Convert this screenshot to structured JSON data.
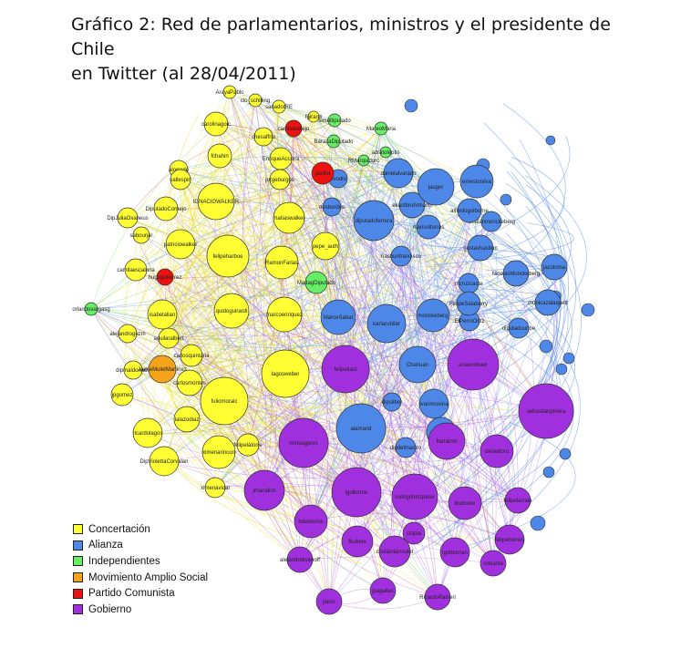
{
  "title_line1": "Gráfico 2: Red de parlamentarios, ministros y el presidente de Chile",
  "title_line2": "en Twitter (al 28/04/2011)",
  "legend": [
    {
      "label": "Concertación",
      "color": "#ffff33"
    },
    {
      "label": "Alianza",
      "color": "#4d88e8"
    },
    {
      "label": "Independientes",
      "color": "#66ee66"
    },
    {
      "label": "Movimiento Amplio Social",
      "color": "#f5a31a"
    },
    {
      "label": "Partido Comunista",
      "color": "#ee1111"
    },
    {
      "label": "Gobierno",
      "color": "#a030dd"
    }
  ],
  "nodes": [
    {
      "label": "ArayaPablo",
      "group": "Concertación"
    },
    {
      "label": "clo_schilling",
      "group": "Concertación"
    },
    {
      "label": "sanadorRE",
      "group": "Concertación"
    },
    {
      "label": "carolinagoic",
      "group": "Concertación"
    },
    {
      "label": "fgirardi",
      "group": "Concertación"
    },
    {
      "label": "chesaffrio",
      "group": "Concertación"
    },
    {
      "label": "fchahin",
      "group": "Concertación"
    },
    {
      "label": "EnriqueAccorsi",
      "group": "Concertación"
    },
    {
      "label": "IGNACIOWALKER",
      "group": "Concertación"
    },
    {
      "label": "jorgeburgos",
      "group": "Concertación"
    },
    {
      "label": "felipeharboe",
      "group": "Concertación"
    },
    {
      "label": "RamonFarias",
      "group": "Concertación"
    },
    {
      "label": "pepe_auth",
      "group": "Concertación"
    },
    {
      "label": "matiaswalker",
      "group": "Concertación"
    },
    {
      "label": "quidoguirardi",
      "group": "Concertación"
    },
    {
      "label": "marcoenriquez",
      "group": "Concertación"
    },
    {
      "label": "fuliomoraic",
      "group": "Concertación"
    },
    {
      "label": "lagosweber",
      "group": "Concertación"
    },
    {
      "label": "patriciowalker",
      "group": "Concertación"
    },
    {
      "label": "DiputadoCornejo",
      "group": "Concertación"
    },
    {
      "label": "DipJuliaOxaneus",
      "group": "Concertación"
    },
    {
      "label": "sabourjar",
      "group": "Concertación"
    },
    {
      "label": "alorrade",
      "group": "Concertación"
    },
    {
      "label": "camilaescalona",
      "group": "Concertación"
    },
    {
      "label": "ximenarincon",
      "group": "Concertación"
    },
    {
      "label": "isabelalian",
      "group": "Concertación"
    },
    {
      "label": "alejandroguzm",
      "group": "Concertación"
    },
    {
      "label": "ricardolagos",
      "group": "Concertación"
    },
    {
      "label": "ximenavidal",
      "group": "Concertación"
    },
    {
      "label": "lalazodiaz",
      "group": "Concertación"
    },
    {
      "label": "jpgomez",
      "group": "Concertación"
    },
    {
      "label": "felipelatorre",
      "group": "Concertación"
    },
    {
      "label": "carlosmontes",
      "group": "Concertación"
    },
    {
      "label": "DipViolettaCorvalan",
      "group": "Concertación"
    },
    {
      "label": "carlosquintana",
      "group": "Concertación"
    },
    {
      "label": "aguilaralbert",
      "group": "Concertación"
    },
    {
      "label": "dipmaldonado",
      "group": "Concertación"
    },
    {
      "label": "vallespin",
      "group": "Concertación"
    },
    {
      "label": "karlarubilar",
      "group": "Alianza"
    },
    {
      "label": "MarceSabat",
      "group": "Alianza"
    },
    {
      "label": "Chahuan",
      "group": "Alianza"
    },
    {
      "label": "alamand",
      "group": "Alianza"
    },
    {
      "label": "ivanmoreira",
      "group": "Alianza"
    },
    {
      "label": "iryperez",
      "group": "Alianza"
    },
    {
      "label": "monckeberg",
      "group": "Alianza"
    },
    {
      "label": "diputadoferrera",
      "group": "Alianza"
    },
    {
      "label": "jacoloma",
      "group": "Alianza"
    },
    {
      "label": "danielalvarado",
      "group": "Alianza"
    },
    {
      "label": "jauger",
      "group": "Alianza"
    },
    {
      "label": "ernestosilva",
      "group": "Alianza"
    },
    {
      "label": "ekastbruhrmann",
      "group": "Alianza"
    },
    {
      "label": "marisolturres",
      "group": "Alianza"
    },
    {
      "label": "gustavhasbun",
      "group": "Alianza"
    },
    {
      "label": "hasbunfrancisco",
      "group": "Alianza"
    },
    {
      "label": "mcruzcaste",
      "group": "Alianza"
    },
    {
      "label": "FelipeSalaberry",
      "group": "Alianza"
    },
    {
      "label": "ElPerroOrtiz",
      "group": "Alianza"
    },
    {
      "label": "NicolasMonckeberg",
      "group": "Alianza"
    },
    {
      "label": "diputadouribe",
      "group": "Alianza"
    },
    {
      "label": "dipsilber",
      "group": "Alianza"
    },
    {
      "label": "dipdelmastro",
      "group": "Alianza"
    },
    {
      "label": "alfredogolborne",
      "group": "Alianza"
    },
    {
      "label": "evodio",
      "group": "Alianza"
    },
    {
      "label": "desbordes",
      "group": "Alianza"
    },
    {
      "label": "cristianmonckeberg",
      "group": "Alianza"
    },
    {
      "label": "monicazalaquett",
      "group": "Alianza"
    },
    {
      "label": "MareoMaria",
      "group": "Independientes"
    },
    {
      "label": "BarazaDiputado",
      "group": "Independientes"
    },
    {
      "label": "MadagDiputado",
      "group": "Independientes"
    },
    {
      "label": "orlandovargasg",
      "group": "Independientes"
    },
    {
      "label": "simultiputado",
      "group": "Independientes"
    },
    {
      "label": "RMarquidorc",
      "group": "Independientes"
    },
    {
      "label": "adratoleptis",
      "group": "Independientes"
    },
    {
      "label": "JaimeMuletMartinez",
      "group": "Movimiento Amplio Social"
    },
    {
      "label": "jaeiller",
      "group": "Partido Comunista"
    },
    {
      "label": "camilaballejo",
      "group": "Partido Comunista"
    },
    {
      "label": "hugogutierrez",
      "group": "Partido Comunista"
    },
    {
      "label": "sebastianpinera",
      "group": "Gobierno"
    },
    {
      "label": "anavonbaer",
      "group": "Gobierno"
    },
    {
      "label": "felipekast",
      "group": "Gobierno"
    },
    {
      "label": "minsegpres",
      "group": "Gobierno"
    },
    {
      "label": "lgolborne",
      "group": "Gobierno"
    },
    {
      "label": "rodrigohinzpeter",
      "group": "Gobierno"
    },
    {
      "label": "flarrainm",
      "group": "Gobierno"
    },
    {
      "label": "fbulnes",
      "group": "Gobierno"
    },
    {
      "label": "jlavin",
      "group": "Gobierno"
    },
    {
      "label": "lbutcoke",
      "group": "Gobierno"
    },
    {
      "label": "jmanalich",
      "group": "Gobierno"
    },
    {
      "label": "hdelosrios",
      "group": "Gobierno"
    },
    {
      "label": "lgolboman",
      "group": "Gobierno"
    },
    {
      "label": "danieltoro",
      "group": "Gobierno"
    },
    {
      "label": "jpagallas",
      "group": "Gobierno"
    },
    {
      "label": "RicardoRaineri",
      "group": "Gobierno"
    },
    {
      "label": "cristianlarroulet",
      "group": "Gobierno"
    },
    {
      "label": "felipelarrain",
      "group": "Gobierno"
    },
    {
      "label": "alejandroksenoff",
      "group": "Gobierno"
    },
    {
      "label": "cvlkanta",
      "group": "Gobierno"
    },
    {
      "label": "ctapia",
      "group": "Gobierno"
    },
    {
      "label": "felipebulnes",
      "group": "Gobierno"
    }
  ]
}
